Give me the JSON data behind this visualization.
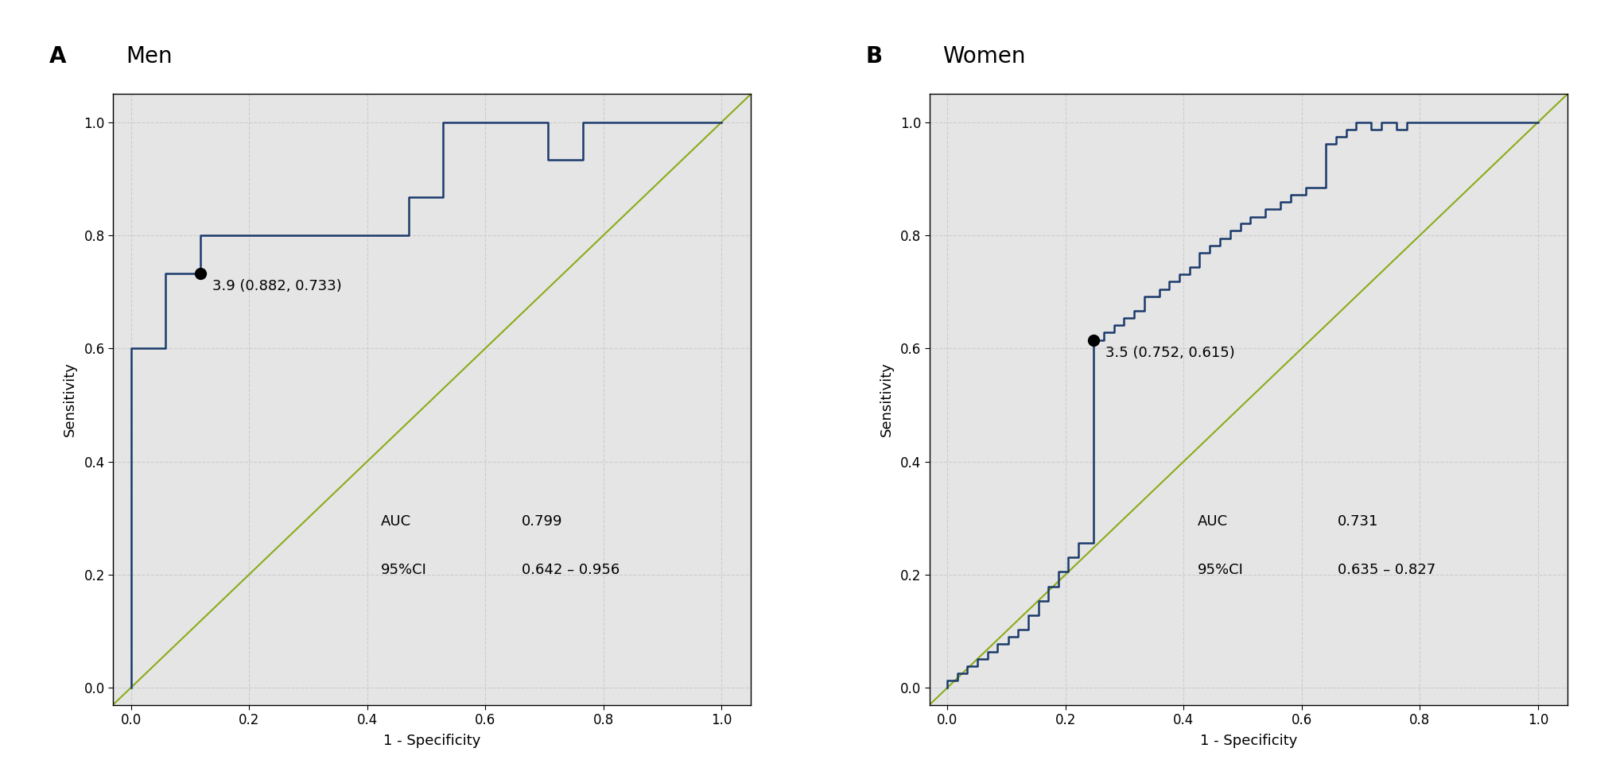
{
  "panel_A": {
    "title": "Men",
    "label": "A",
    "auc": "0.799",
    "ci": "0.642 – 0.956",
    "optimal_point": [
      0.118,
      0.733
    ],
    "optimal_label": "3.9 (0.882, 0.733)",
    "roc_fpr": [
      0.0,
      0.0,
      0.059,
      0.059,
      0.118,
      0.118,
      0.471,
      0.471,
      0.529,
      0.529,
      0.706,
      0.706,
      0.765,
      0.765,
      1.0
    ],
    "roc_tpr": [
      0.0,
      0.6,
      0.6,
      0.733,
      0.733,
      0.8,
      0.8,
      0.867,
      0.867,
      1.0,
      1.0,
      0.933,
      0.933,
      1.0,
      1.0
    ]
  },
  "panel_B": {
    "title": "Women",
    "label": "B",
    "auc": "0.731",
    "ci": "0.635 – 0.827",
    "optimal_point": [
      0.248,
      0.615
    ],
    "optimal_label": "3.5 (0.752, 0.615)",
    "roc_fpr": [
      0.0,
      0.0,
      0.017,
      0.017,
      0.034,
      0.034,
      0.051,
      0.051,
      0.068,
      0.068,
      0.085,
      0.085,
      0.103,
      0.103,
      0.12,
      0.12,
      0.137,
      0.137,
      0.154,
      0.154,
      0.171,
      0.171,
      0.188,
      0.188,
      0.205,
      0.205,
      0.222,
      0.222,
      0.248,
      0.248,
      0.265,
      0.265,
      0.282,
      0.282,
      0.299,
      0.299,
      0.316,
      0.316,
      0.333,
      0.333,
      0.359,
      0.359,
      0.376,
      0.376,
      0.393,
      0.393,
      0.41,
      0.41,
      0.427,
      0.427,
      0.444,
      0.444,
      0.462,
      0.462,
      0.479,
      0.479,
      0.496,
      0.496,
      0.513,
      0.513,
      0.538,
      0.538,
      0.564,
      0.564,
      0.581,
      0.581,
      0.607,
      0.607,
      0.641,
      0.641,
      0.658,
      0.658,
      0.675,
      0.675,
      0.692,
      0.692,
      0.718,
      0.718,
      0.735,
      0.735,
      0.761,
      0.761,
      0.778,
      0.778,
      1.0
    ],
    "roc_tpr": [
      0.0,
      0.013,
      0.013,
      0.026,
      0.026,
      0.038,
      0.038,
      0.051,
      0.051,
      0.064,
      0.064,
      0.077,
      0.077,
      0.09,
      0.09,
      0.103,
      0.103,
      0.128,
      0.128,
      0.154,
      0.154,
      0.179,
      0.179,
      0.205,
      0.205,
      0.231,
      0.231,
      0.256,
      0.256,
      0.615,
      0.615,
      0.628,
      0.628,
      0.641,
      0.641,
      0.654,
      0.654,
      0.667,
      0.667,
      0.692,
      0.692,
      0.705,
      0.705,
      0.718,
      0.718,
      0.731,
      0.731,
      0.744,
      0.744,
      0.769,
      0.769,
      0.782,
      0.782,
      0.795,
      0.795,
      0.808,
      0.808,
      0.821,
      0.821,
      0.833,
      0.833,
      0.846,
      0.846,
      0.859,
      0.859,
      0.872,
      0.872,
      0.885,
      0.885,
      0.962,
      0.962,
      0.974,
      0.974,
      0.987,
      0.987,
      1.0,
      1.0,
      0.987,
      0.987,
      1.0,
      1.0,
      0.987,
      0.987,
      1.0,
      1.0
    ]
  },
  "roc_color": "#1a3a6b",
  "diagonal_color": "#8aac18",
  "bg_color": "#e5e5e5",
  "grid_color": "#cccccc",
  "text_color": "#000000",
  "fig_bg_color": "#ffffff",
  "xlim": [
    -0.03,
    1.05
  ],
  "ylim": [
    -0.03,
    1.05
  ]
}
